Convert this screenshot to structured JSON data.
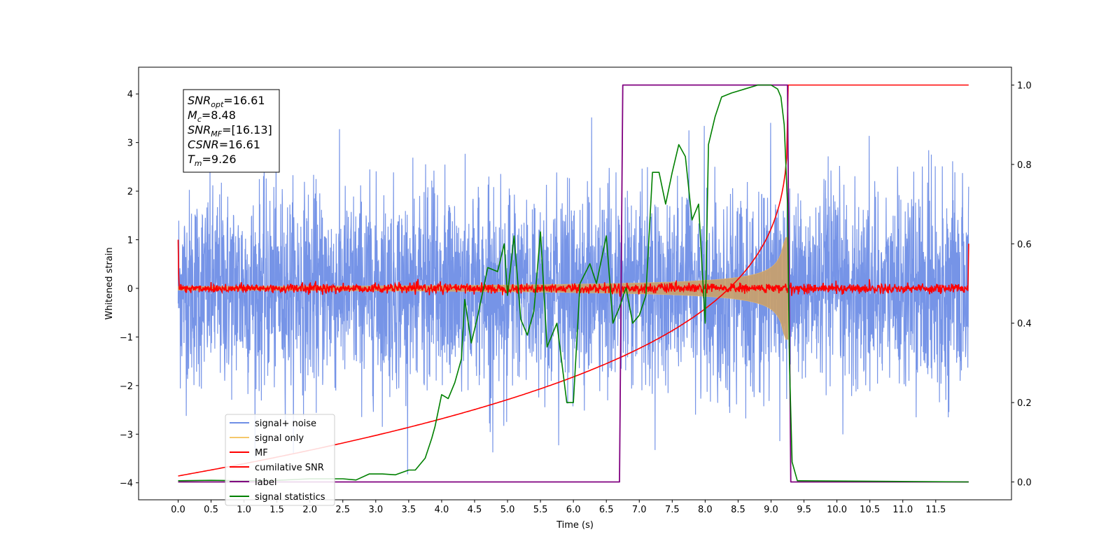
{
  "chart_data": {
    "type": "line",
    "title": "",
    "xlabel": "Time (s)",
    "ylabel": "Whitened strain",
    "y2label": "",
    "xlim": [
      -0.6,
      12.65
    ],
    "ylim": [
      -4.35,
      4.55
    ],
    "y2lim": [
      -0.045,
      1.045
    ],
    "x_ticks": [
      "0.0",
      "0.5",
      "1.0",
      "1.5",
      "2.0",
      "2.5",
      "3.0",
      "3.5",
      "4.0",
      "4.5",
      "5.0",
      "5.5",
      "6.0",
      "6.5",
      "7.0",
      "7.5",
      "8.0",
      "8.5",
      "9.0",
      "9.5",
      "10.0",
      "10.5",
      "11.0",
      "11.5"
    ],
    "y_ticks": [
      "4",
      "3",
      "2",
      "1",
      "0",
      "−1",
      "−2",
      "−3",
      "−4"
    ],
    "y2_ticks": [
      "1.0",
      "0.8",
      "0.6",
      "0.4",
      "0.2",
      "0.0"
    ],
    "grid": false,
    "legend_position": "lower left",
    "legend": [
      {
        "name": "signal+ noise",
        "color": "#6f8ee6"
      },
      {
        "name": "signal only",
        "color": "#f5c86b"
      },
      {
        "name": "MF",
        "color": "#ff0000"
      },
      {
        "name": "cumilative SNR",
        "color": "#ff0000"
      },
      {
        "name": "label",
        "color": "#800080"
      },
      {
        "name": "signal statistics",
        "color": "#008000"
      }
    ],
    "annotation": {
      "lines": [
        {
          "sym": "SNR",
          "sub": "opt",
          "text": "=16.61"
        },
        {
          "sym": "M",
          "sub": "c",
          "text": "=8.48"
        },
        {
          "sym": "SNR",
          "sub": "MF",
          "text": "=[16.13]"
        },
        {
          "sym": "CSNR",
          "sub": "",
          "text": "=16.61"
        },
        {
          "sym": "T",
          "sub": "m",
          "text": "=9.26"
        }
      ]
    },
    "series": [
      {
        "name": "signal+ noise",
        "axis": "left",
        "description_stats": {
          "x_range": [
            0.0,
            12.0
          ],
          "std": 1.0,
          "max": 4.1,
          "min": -3.95
        }
      },
      {
        "name": "signal only",
        "axis": "left",
        "chirp": {
          "start": 0.0,
          "merger": 9.26,
          "end_amplitude": 1.05
        }
      },
      {
        "name": "MF",
        "axis": "left",
        "x_range": [
          0.0,
          12.0
        ],
        "level": 0.0,
        "noise": 0.05,
        "endpoints": [
          1.0,
          0.92
        ]
      },
      {
        "name": "cumilative SNR",
        "axis": "right",
        "points": [
          [
            0.0,
            0.0
          ],
          [
            0.05,
            0.015
          ],
          [
            0.5,
            0.03
          ],
          [
            1.0,
            0.05
          ],
          [
            2.0,
            0.08
          ],
          [
            3.0,
            0.11
          ],
          [
            4.0,
            0.15
          ],
          [
            5.0,
            0.19
          ],
          [
            6.0,
            0.24
          ],
          [
            6.5,
            0.27
          ],
          [
            7.0,
            0.31
          ],
          [
            7.5,
            0.36
          ],
          [
            8.0,
            0.43
          ],
          [
            8.5,
            0.52
          ],
          [
            8.8,
            0.6
          ],
          [
            9.0,
            0.7
          ],
          [
            9.1,
            0.78
          ],
          [
            9.2,
            0.9
          ],
          [
            9.26,
            1.0
          ],
          [
            12.0,
            1.0
          ]
        ]
      },
      {
        "name": "label",
        "axis": "right",
        "points": [
          [
            0.0,
            0.0
          ],
          [
            6.7,
            0.0
          ],
          [
            6.75,
            1.0
          ],
          [
            9.25,
            1.0
          ],
          [
            9.3,
            0.0
          ],
          [
            12.0,
            0.0
          ]
        ]
      },
      {
        "name": "signal statistics",
        "axis": "right",
        "points": [
          [
            0.0,
            0.003
          ],
          [
            0.5,
            0.004
          ],
          [
            1.0,
            0.003
          ],
          [
            1.5,
            0.004
          ],
          [
            2.0,
            0.008
          ],
          [
            2.5,
            0.008
          ],
          [
            2.7,
            0.005
          ],
          [
            2.9,
            0.02
          ],
          [
            3.1,
            0.02
          ],
          [
            3.3,
            0.018
          ],
          [
            3.5,
            0.03
          ],
          [
            3.6,
            0.03
          ],
          [
            3.75,
            0.06
          ],
          [
            3.85,
            0.11
          ],
          [
            3.9,
            0.14
          ],
          [
            4.0,
            0.22
          ],
          [
            4.1,
            0.21
          ],
          [
            4.2,
            0.25
          ],
          [
            4.3,
            0.31
          ],
          [
            4.35,
            0.46
          ],
          [
            4.45,
            0.35
          ],
          [
            4.55,
            0.42
          ],
          [
            4.7,
            0.54
          ],
          [
            4.85,
            0.53
          ],
          [
            4.95,
            0.6
          ],
          [
            5.0,
            0.47
          ],
          [
            5.1,
            0.62
          ],
          [
            5.2,
            0.41
          ],
          [
            5.3,
            0.37
          ],
          [
            5.4,
            0.43
          ],
          [
            5.5,
            0.63
          ],
          [
            5.6,
            0.34
          ],
          [
            5.75,
            0.4
          ],
          [
            5.9,
            0.2
          ],
          [
            6.0,
            0.2
          ],
          [
            6.1,
            0.5
          ],
          [
            6.25,
            0.55
          ],
          [
            6.35,
            0.5
          ],
          [
            6.5,
            0.62
          ],
          [
            6.6,
            0.4
          ],
          [
            6.7,
            0.44
          ],
          [
            6.8,
            0.49
          ],
          [
            6.9,
            0.4
          ],
          [
            7.0,
            0.42
          ],
          [
            7.1,
            0.47
          ],
          [
            7.2,
            0.78
          ],
          [
            7.3,
            0.78
          ],
          [
            7.4,
            0.7
          ],
          [
            7.5,
            0.78
          ],
          [
            7.6,
            0.85
          ],
          [
            7.7,
            0.82
          ],
          [
            7.8,
            0.66
          ],
          [
            7.9,
            0.7
          ],
          [
            8.0,
            0.4
          ],
          [
            8.05,
            0.85
          ],
          [
            8.15,
            0.92
          ],
          [
            8.25,
            0.97
          ],
          [
            8.4,
            0.98
          ],
          [
            8.6,
            0.99
          ],
          [
            8.8,
            1.0
          ],
          [
            9.0,
            1.0
          ],
          [
            9.1,
            0.99
          ],
          [
            9.15,
            0.97
          ],
          [
            9.2,
            0.9
          ],
          [
            9.25,
            0.7
          ],
          [
            9.28,
            0.3
          ],
          [
            9.32,
            0.05
          ],
          [
            9.4,
            0.003
          ],
          [
            12.0,
            0.0
          ]
        ]
      }
    ]
  }
}
